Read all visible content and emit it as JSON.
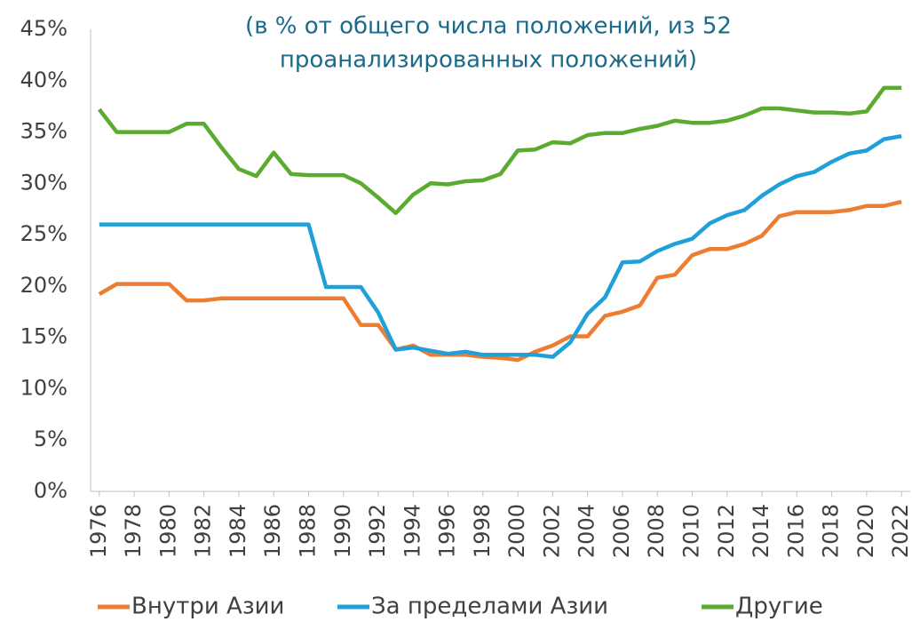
{
  "chart_data": {
    "type": "line",
    "title": [
      "(в % от общего числа положений, из 52",
      "проанализированных положений)"
    ],
    "x": [
      1976,
      1977,
      1978,
      1979,
      1980,
      1981,
      1982,
      1983,
      1984,
      1985,
      1986,
      1987,
      1988,
      1989,
      1990,
      1991,
      1992,
      1993,
      1994,
      1995,
      1996,
      1997,
      1998,
      1999,
      2000,
      2001,
      2002,
      2003,
      2004,
      2005,
      2006,
      2007,
      2008,
      2009,
      2010,
      2011,
      2012,
      2013,
      2014,
      2015,
      2016,
      2017,
      2018,
      2019,
      2020,
      2021,
      2022
    ],
    "series": [
      {
        "name": "Внутри Азии",
        "color": "#ed7d31",
        "values": [
          19.2,
          20.2,
          20.2,
          20.2,
          20.2,
          18.6,
          18.6,
          18.8,
          18.8,
          18.8,
          18.8,
          18.8,
          18.8,
          18.8,
          18.8,
          16.2,
          16.2,
          13.8,
          14.2,
          13.3,
          13.3,
          13.3,
          13.1,
          13.0,
          12.8,
          13.6,
          14.2,
          15.1,
          15.1,
          17.1,
          17.5,
          18.1,
          20.8,
          21.1,
          23.0,
          23.6,
          23.6,
          24.1,
          24.9,
          26.8,
          27.2,
          27.2,
          27.2,
          27.4,
          27.8,
          27.8,
          28.2
        ]
      },
      {
        "name": "За пределами Азии",
        "color": "#1fa0d8",
        "values": [
          26,
          26,
          26,
          26,
          26,
          26,
          26,
          26,
          26,
          26,
          26,
          26,
          26,
          19.9,
          19.9,
          19.9,
          17.4,
          13.8,
          14.0,
          13.7,
          13.4,
          13.6,
          13.3,
          13.3,
          13.3,
          13.3,
          13.1,
          14.5,
          17.3,
          18.9,
          22.3,
          22.4,
          23.4,
          24.1,
          24.6,
          26.1,
          26.9,
          27.4,
          28.8,
          29.9,
          30.7,
          31.1,
          32.1,
          32.9,
          33.2,
          34.3,
          34.6
        ]
      },
      {
        "name": "Другие",
        "color": "#5aab2f",
        "values": [
          37.2,
          35,
          35,
          35,
          35,
          35.8,
          35.8,
          33.5,
          31.4,
          30.7,
          33,
          30.9,
          30.8,
          30.8,
          30.8,
          30,
          28.6,
          27.1,
          28.9,
          30,
          29.9,
          30.2,
          30.3,
          30.9,
          33.2,
          33.3,
          34,
          33.9,
          34.7,
          34.9,
          34.9,
          35.3,
          35.6,
          36.1,
          35.9,
          35.9,
          36.1,
          36.6,
          37.3,
          37.3,
          37.1,
          36.9,
          36.9,
          36.8,
          37,
          39.3,
          39.3
        ]
      }
    ],
    "xlim": [
      1975.5,
      2022.5
    ],
    "xticks": [
      1976,
      1978,
      1980,
      1982,
      1984,
      1986,
      1988,
      1990,
      1992,
      1994,
      1996,
      1998,
      2000,
      2002,
      2004,
      2006,
      2008,
      2010,
      2012,
      2014,
      2016,
      2018,
      2020,
      2022
    ],
    "ylim": [
      0,
      45
    ],
    "yticks": [
      {
        "value": 0,
        "label": "0%"
      },
      {
        "value": 5,
        "label": "5%"
      },
      {
        "value": 10,
        "label": "10%"
      },
      {
        "value": 15,
        "label": "15%"
      },
      {
        "value": 20,
        "label": "20%"
      },
      {
        "value": 25,
        "label": "25%"
      },
      {
        "value": 30,
        "label": "30%"
      },
      {
        "value": 35,
        "label": "35%"
      },
      {
        "value": 40,
        "label": "40%"
      },
      {
        "value": 45,
        "label": "45%"
      }
    ],
    "grid": false,
    "legend": "bottom"
  }
}
